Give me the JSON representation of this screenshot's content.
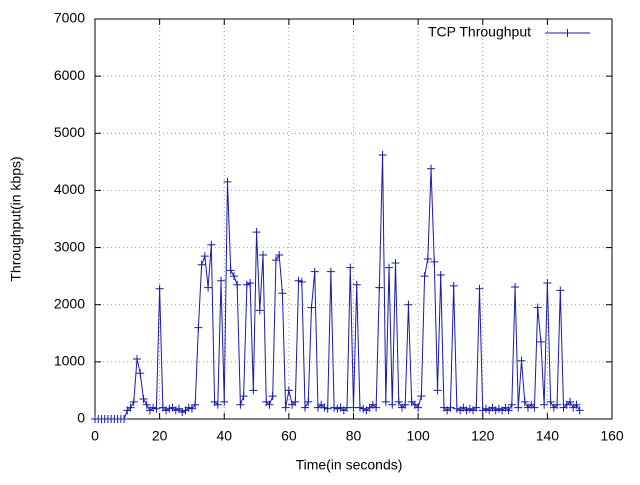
{
  "chart_data": {
    "type": "line",
    "x_label": "Time(in seconds)",
    "y_label": "Throughput(in kbps)",
    "x": [
      0,
      1,
      2,
      3,
      4,
      5,
      6,
      7,
      8,
      9,
      10,
      11,
      12,
      13,
      14,
      15,
      16,
      17,
      18,
      19,
      20,
      21,
      22,
      23,
      24,
      25,
      26,
      27,
      28,
      29,
      30,
      31,
      32,
      33,
      34,
      35,
      36,
      37,
      38,
      39,
      40,
      41,
      42,
      43,
      44,
      45,
      46,
      47,
      48,
      49,
      50,
      51,
      52,
      53,
      54,
      55,
      56,
      57,
      58,
      59,
      60,
      61,
      62,
      63,
      64,
      65,
      66,
      67,
      68,
      69,
      70,
      71,
      72,
      73,
      74,
      75,
      76,
      77,
      78,
      79,
      80,
      81,
      82,
      83,
      84,
      85,
      86,
      87,
      88,
      89,
      90,
      91,
      92,
      93,
      94,
      95,
      96,
      97,
      98,
      99,
      100,
      101,
      102,
      103,
      104,
      105,
      106,
      107,
      108,
      109,
      110,
      111,
      112,
      113,
      114,
      115,
      116,
      117,
      118,
      119,
      120,
      121,
      122,
      123,
      124,
      125,
      126,
      127,
      128,
      129,
      130,
      131,
      132,
      133,
      134,
      135,
      136,
      137,
      138,
      139,
      140,
      141,
      142,
      143,
      144,
      145,
      146,
      147,
      148,
      149,
      150
    ],
    "series": [
      {
        "name": "TCP Throughput",
        "color": "#1a1aa8",
        "values": [
          0,
          0,
          0,
          0,
          0,
          0,
          0,
          0,
          0,
          0,
          150,
          200,
          300,
          1050,
          800,
          350,
          250,
          150,
          200,
          180,
          2280,
          200,
          150,
          180,
          200,
          150,
          180,
          120,
          150,
          200,
          180,
          250,
          1600,
          2700,
          2850,
          2300,
          3050,
          300,
          250,
          2420,
          300,
          4150,
          2600,
          2500,
          2350,
          250,
          400,
          2350,
          2380,
          500,
          3270,
          1900,
          2870,
          300,
          250,
          400,
          2780,
          2870,
          2200,
          200,
          500,
          250,
          300,
          2420,
          2400,
          200,
          300,
          1950,
          2580,
          200,
          250,
          200,
          180,
          2580,
          200,
          180,
          200,
          150,
          200,
          2650,
          200,
          2350,
          200,
          180,
          150,
          200,
          250,
          200,
          2300,
          4620,
          300,
          2650,
          250,
          2730,
          300,
          200,
          250,
          2000,
          300,
          250,
          200,
          400,
          2500,
          2800,
          4380,
          2750,
          500,
          2520,
          200,
          150,
          200,
          2330,
          180,
          150,
          200,
          150,
          180,
          150,
          200,
          2280,
          150,
          180,
          150,
          200,
          150,
          180,
          150,
          200,
          150,
          250,
          2310,
          200,
          1020,
          300,
          200,
          250,
          200,
          1950,
          1350,
          250,
          2380,
          300,
          200,
          250,
          2250,
          200,
          250,
          300,
          200,
          250,
          150
        ]
      }
    ],
    "xlim": [
      0,
      160
    ],
    "xticks": [
      0,
      20,
      40,
      60,
      80,
      100,
      120,
      140,
      160
    ],
    "ylim": [
      0,
      7000
    ],
    "yticks": [
      0,
      1000,
      2000,
      3000,
      4000,
      5000,
      6000,
      7000
    ],
    "grid": true,
    "legend": "top-right"
  }
}
